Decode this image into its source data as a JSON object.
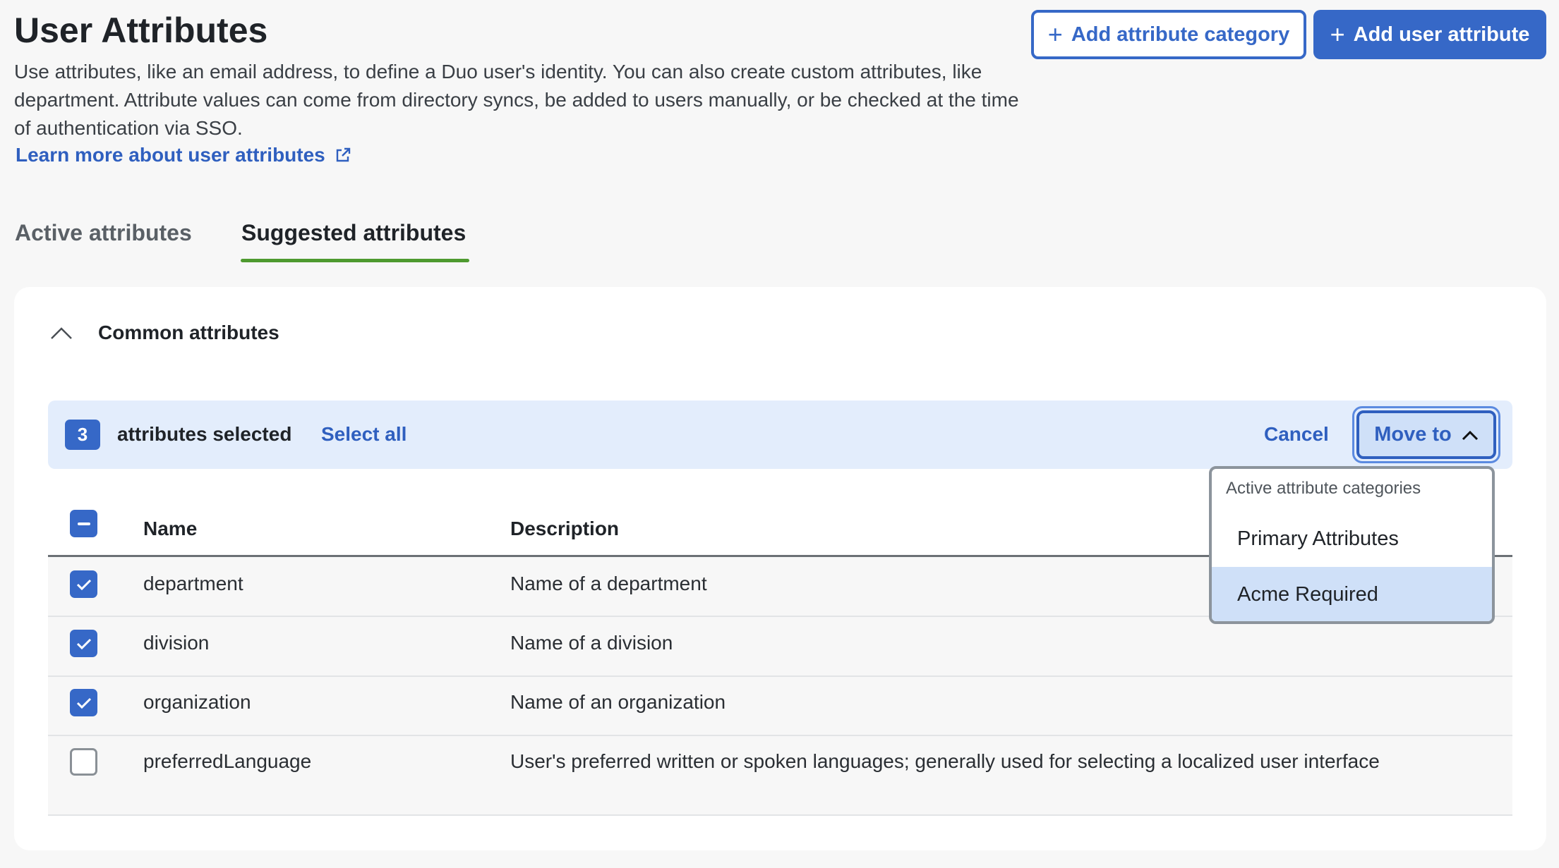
{
  "header": {
    "title": "User Attributes",
    "description": "Use attributes, like an email address, to define a Duo user's identity. You can also create custom attributes, like department. Attribute values can come from directory syncs, be added to users manually, or be checked at the time of authentication via SSO.",
    "learn_more": "Learn more about user attributes",
    "add_category": "Add attribute category",
    "add_attribute": "Add user attribute"
  },
  "tabs": [
    {
      "label": "Active attributes",
      "selected": false
    },
    {
      "label": "Suggested attributes",
      "selected": true
    }
  ],
  "section": {
    "title": "Common attributes",
    "expanded": true
  },
  "selection": {
    "count": "3",
    "label": "attributes selected",
    "select_all": "Select all",
    "cancel": "Cancel",
    "move_to": "Move to"
  },
  "table": {
    "columns": [
      "Name",
      "Description"
    ],
    "rows": [
      {
        "name": "department",
        "description": "Name of a department",
        "checked": true
      },
      {
        "name": "division",
        "description": "Name of a division",
        "checked": true
      },
      {
        "name": "organization",
        "description": "Name of an organization",
        "checked": true
      },
      {
        "name": "preferredLanguage",
        "description": "User's preferred written or spoken languages; generally used for selecting a localized user interface",
        "checked": false
      }
    ]
  },
  "dropdown": {
    "header": "Active attribute categories",
    "items": [
      {
        "label": "Primary Attributes"
      },
      {
        "label": "Acme Required",
        "highlighted": true
      }
    ]
  },
  "colors": {
    "accent": "#3668c7",
    "tab_underline": "#4e9a2f",
    "banner": "#e3edfc"
  }
}
